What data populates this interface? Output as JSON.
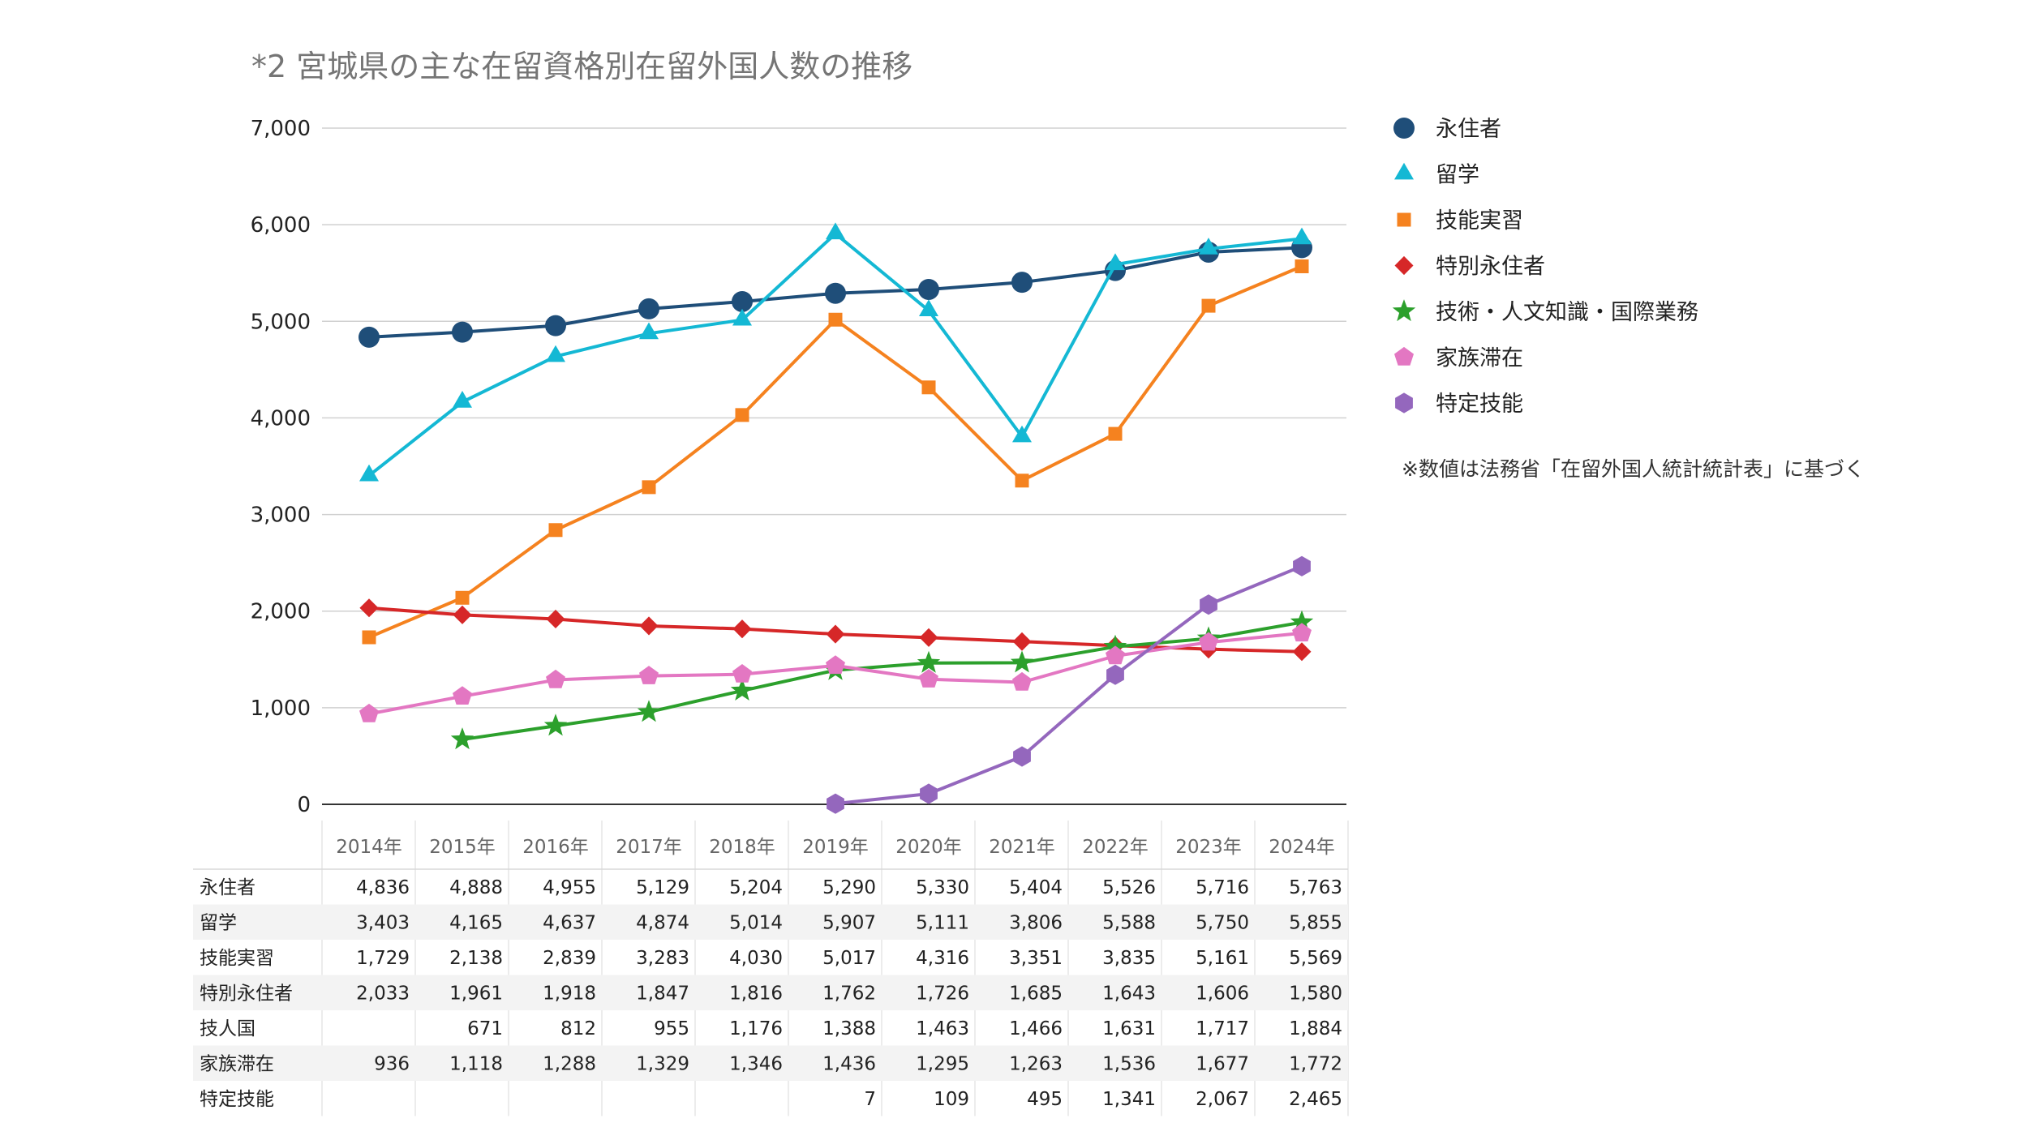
{
  "colors": {
    "永住者": "#1f4e79",
    "留学": "#14b8d4",
    "技能実習": "#f5821f",
    "特別永住者": "#d62728",
    "技術・人文知識・国際業務": "#2ca02c",
    "家族滞在": "#e377c2",
    "特定技能": "#9467bd"
  },
  "chart_data": {
    "type": "line",
    "title": "*2 宮城県の主な在留資格別在留外国人数の推移",
    "categories": [
      "2014年",
      "2015年",
      "2016年",
      "2017年",
      "2018年",
      "2019年",
      "2020年",
      "2021年",
      "2022年",
      "2023年",
      "2024年"
    ],
    "ylim": [
      0,
      7000
    ],
    "yticks": [
      0,
      1000,
      2000,
      3000,
      4000,
      5000,
      6000,
      7000
    ],
    "ytick_labels": [
      "0",
      "1,000",
      "2,000",
      "3,000",
      "4,000",
      "5,000",
      "6,000",
      "7,000"
    ],
    "legend_position": "right",
    "series": [
      {
        "name": "永住者",
        "table_label": "永住者",
        "marker": "circle",
        "values": [
          4836,
          4888,
          4955,
          5129,
          5204,
          5290,
          5330,
          5404,
          5526,
          5716,
          5763
        ],
        "labels": [
          "4,836",
          "4,888",
          "4,955",
          "5,129",
          "5,204",
          "5,290",
          "5,330",
          "5,404",
          "5,526",
          "5,716",
          "5,763"
        ]
      },
      {
        "name": "留学",
        "table_label": "留学",
        "marker": "triangle",
        "values": [
          3403,
          4165,
          4637,
          4874,
          5014,
          5907,
          5111,
          3806,
          5588,
          5750,
          5855
        ],
        "labels": [
          "3,403",
          "4,165",
          "4,637",
          "4,874",
          "5,014",
          "5,907",
          "5,111",
          "3,806",
          "5,588",
          "5,750",
          "5,855"
        ]
      },
      {
        "name": "技能実習",
        "table_label": "技能実習",
        "marker": "square",
        "values": [
          1729,
          2138,
          2839,
          3283,
          4030,
          5017,
          4316,
          3351,
          3835,
          5161,
          5569
        ],
        "labels": [
          "1,729",
          "2,138",
          "2,839",
          "3,283",
          "4,030",
          "5,017",
          "4,316",
          "3,351",
          "3,835",
          "5,161",
          "5,569"
        ]
      },
      {
        "name": "特別永住者",
        "table_label": "特別永住者",
        "marker": "diamond",
        "values": [
          2033,
          1961,
          1918,
          1847,
          1816,
          1762,
          1726,
          1685,
          1643,
          1606,
          1580
        ],
        "labels": [
          "2,033",
          "1,961",
          "1,918",
          "1,847",
          "1,816",
          "1,762",
          "1,726",
          "1,685",
          "1,643",
          "1,606",
          "1,580"
        ]
      },
      {
        "name": "技術・人文知識・国際業務",
        "table_label": "技人国",
        "marker": "star",
        "values": [
          null,
          671,
          812,
          955,
          1176,
          1388,
          1463,
          1466,
          1631,
          1717,
          1884
        ],
        "labels": [
          "",
          "671",
          "812",
          "955",
          "1,176",
          "1,388",
          "1,463",
          "1,466",
          "1,631",
          "1,717",
          "1,884"
        ]
      },
      {
        "name": "家族滞在",
        "table_label": "家族滞在",
        "marker": "pentagon",
        "values": [
          936,
          1118,
          1288,
          1329,
          1346,
          1436,
          1295,
          1263,
          1536,
          1677,
          1772
        ],
        "labels": [
          "936",
          "1,118",
          "1,288",
          "1,329",
          "1,346",
          "1,436",
          "1,295",
          "1,263",
          "1,536",
          "1,677",
          "1,772"
        ]
      },
      {
        "name": "特定技能",
        "table_label": "特定技能",
        "marker": "hexagon",
        "values": [
          null,
          null,
          null,
          null,
          null,
          7,
          109,
          495,
          1341,
          2067,
          2465
        ],
        "labels": [
          "",
          "",
          "",
          "",
          "",
          "7",
          "109",
          "495",
          "1,341",
          "2,067",
          "2,465"
        ]
      }
    ]
  },
  "note": "※数値は法務省「在留外国人統計統計表」に基づく"
}
